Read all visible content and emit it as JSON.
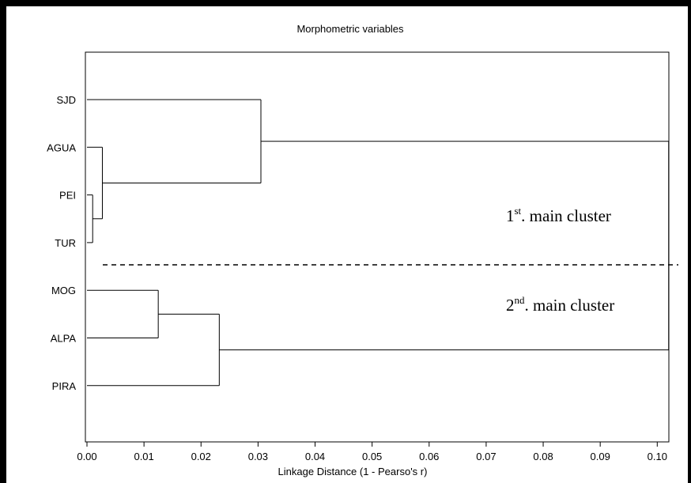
{
  "chart_data": {
    "type": "dendrogram",
    "title": "Morphometric variables",
    "xlabel": "Linkage Distance (1 - Pearso's r)",
    "xlim": [
      0,
      0.106
    ],
    "x_ticks": [
      "0.00",
      "0.01",
      "0.02",
      "0.03",
      "0.04",
      "0.05",
      "0.06",
      "0.07",
      "0.08",
      "0.09",
      "0.10"
    ],
    "x_tick_values": [
      0,
      0.01,
      0.02,
      0.03,
      0.04,
      0.05,
      0.06,
      0.07,
      0.08,
      0.09,
      0.1
    ],
    "leaves": [
      "SJD",
      "AGUA",
      "PEI",
      "TUR",
      "MOG",
      "ALPA",
      "PIRA"
    ],
    "merges": [
      {
        "id": "m1",
        "children": [
          "PEI",
          "TUR"
        ],
        "height": 0.001
      },
      {
        "id": "m2",
        "children": [
          "AGUA",
          "m1"
        ],
        "height": 0.0027
      },
      {
        "id": "m3",
        "children": [
          "SJD",
          "m2"
        ],
        "height": 0.0305
      },
      {
        "id": "m4",
        "children": [
          "MOG",
          "ALPA"
        ],
        "height": 0.0125
      },
      {
        "id": "m5",
        "children": [
          "m4",
          "PIRA"
        ],
        "height": 0.0232
      },
      {
        "id": "m6",
        "children": [
          "m3",
          "m5"
        ],
        "height": 0.102
      }
    ],
    "cutoff_line": "dashed",
    "annotations": [
      {
        "base": "1",
        "sup": "st",
        "rest": ". main cluster"
      },
      {
        "base": "2",
        "sup": "nd",
        "rest": ". main cluster"
      }
    ]
  }
}
